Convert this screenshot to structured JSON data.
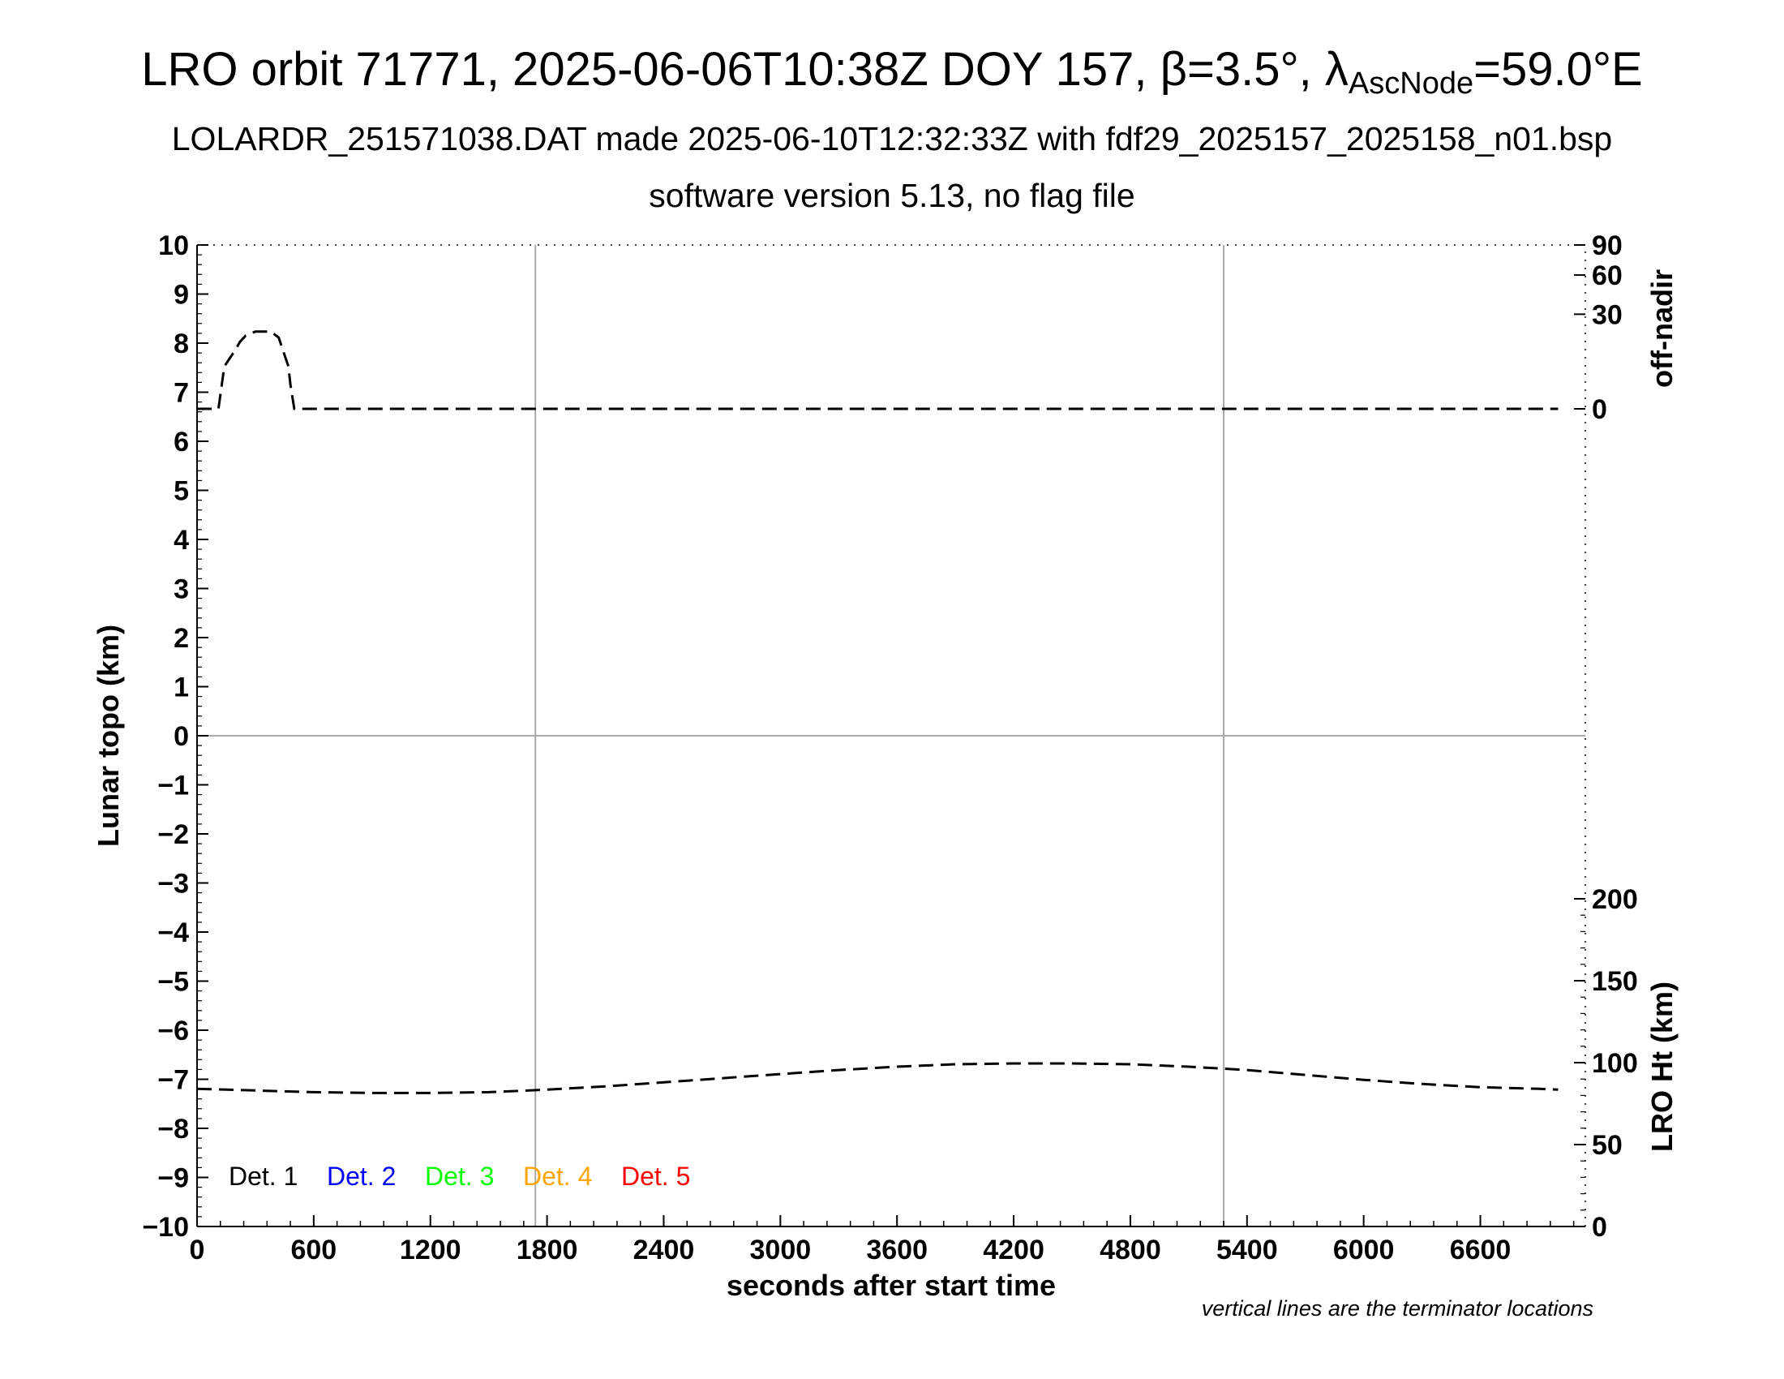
{
  "header": {
    "title_main": "LRO orbit 71771, 2025-06-06T10:38Z DOY 157, β=3.5°, λ",
    "title_sub": "AscNode",
    "title_end": "=59.0°E",
    "subtitle_1": "LOLARDR_251571038.DAT made 2025-06-10T12:32:33Z with fdf29_2025157_2025158_n01.bsp",
    "subtitle_2": "software version 5.13, no flag file"
  },
  "chart_data": {
    "type": "line",
    "xlabel": "seconds after start time",
    "ylabel": "Lunar topo (km)",
    "right_axis_top_label": "off-nadir",
    "right_axis_bottom_label": "LRO Ht (km)",
    "xlim": [
      0,
      7140
    ],
    "ylim": [
      -10,
      10
    ],
    "x_ticks": [
      0,
      600,
      1200,
      1800,
      2400,
      3000,
      3600,
      4200,
      4800,
      5400,
      6000,
      6600
    ],
    "y_ticks": [
      10,
      9,
      8,
      7,
      6,
      5,
      4,
      3,
      2,
      1,
      0,
      -1,
      -2,
      -3,
      -4,
      -5,
      -6,
      -7,
      -8,
      -9,
      -10
    ],
    "y_tick_labels": [
      "10",
      "9",
      "8",
      "7",
      "6",
      "5",
      "4",
      "3",
      "2",
      "1",
      "0",
      "−1",
      "−2",
      "−3",
      "−4",
      "−5",
      "−6",
      "−7",
      "−8",
      "−9",
      "−10"
    ],
    "off_nadir_ticks": [
      90,
      60,
      30,
      0
    ],
    "lro_ht_ticks": [
      200,
      150,
      100,
      50,
      0
    ],
    "terminator_lines_x": [
      1740,
      5280
    ],
    "zero_line": true,
    "series": [
      {
        "axis": "off-nadir",
        "style": "dashed",
        "color": "#000000",
        "x": [
          0,
          110,
          140,
          200,
          220,
          250,
          300,
          350,
          380,
          420,
          470,
          480,
          500,
          800,
          1200,
          1800,
          2400,
          3000,
          3600,
          4200,
          4800,
          5400,
          6000,
          6600,
          7000
        ],
        "y": [
          0,
          0,
          6,
          12,
          15,
          18,
          20,
          20,
          20,
          17,
          6,
          2,
          0,
          0,
          0,
          0,
          0,
          0,
          0,
          0,
          0,
          0,
          0,
          0,
          0
        ]
      },
      {
        "axis": "LRO Ht",
        "style": "dashed",
        "color": "#000000",
        "x": [
          0,
          300,
          600,
          900,
          1200,
          1500,
          1800,
          2100,
          2400,
          2700,
          3000,
          3300,
          3600,
          3900,
          4200,
          4500,
          4800,
          5100,
          5400,
          5700,
          6000,
          6300,
          6600,
          6900,
          7000
        ],
        "y": [
          84,
          83,
          82,
          81.5,
          81.5,
          82,
          83.5,
          85.5,
          88,
          90.5,
          93,
          95.5,
          97.5,
          99,
          99.5,
          99.5,
          99,
          97.5,
          95.5,
          92.5,
          89.5,
          87,
          85,
          84,
          83.5
        ]
      }
    ],
    "legend": [
      {
        "label": "Det. 1",
        "color": "#000000"
      },
      {
        "label": "Det. 2",
        "color": "#0000ff"
      },
      {
        "label": "Det. 3",
        "color": "#00ff00"
      },
      {
        "label": "Det. 4",
        "color": "#ffa500"
      },
      {
        "label": "Det. 5",
        "color": "#ff0000"
      }
    ],
    "legend_position": "bottom-left",
    "note": "vertical lines are the terminator locations"
  }
}
